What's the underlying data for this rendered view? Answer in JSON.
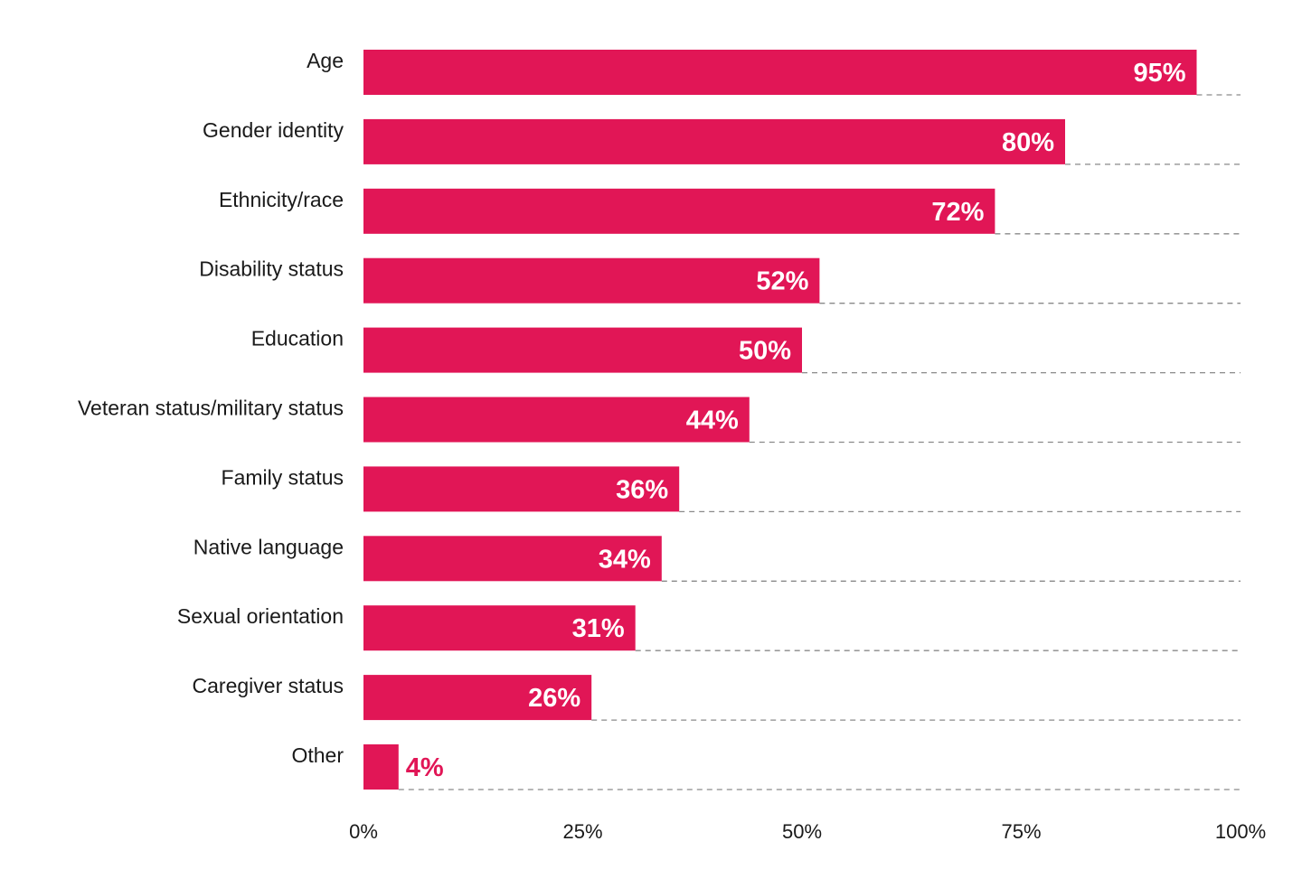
{
  "colors": {
    "bar": "#e11656",
    "inside_label": "#ffffff",
    "outside_label": "#e11656",
    "guide": "#8a8a8a",
    "text": "#1a1a1a"
  },
  "chart_data": {
    "type": "bar",
    "orientation": "horizontal",
    "title": "",
    "xlabel": "",
    "ylabel": "",
    "xlim": [
      0,
      100
    ],
    "grid": false,
    "legend": "none",
    "categories": [
      "Age",
      "Gender identity",
      "Ethnicity/race",
      "Disability status",
      "Education",
      "Veteran status/military status",
      "Family status",
      "Native language",
      "Sexual orientation",
      "Caregiver status",
      "Other"
    ],
    "values": [
      95,
      80,
      72,
      52,
      50,
      44,
      36,
      34,
      31,
      26,
      4
    ],
    "value_labels": [
      "95%",
      "80%",
      "72%",
      "52%",
      "50%",
      "44%",
      "36%",
      "34%",
      "31%",
      "26%",
      "4%"
    ],
    "ticks": [
      0,
      25,
      50,
      75,
      100
    ],
    "tick_labels": [
      "0%",
      "25%",
      "50%",
      "75%",
      "100%"
    ]
  }
}
